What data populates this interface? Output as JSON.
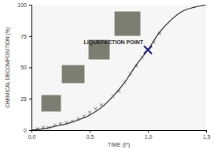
{
  "chart_data": {
    "type": "scatter",
    "x_label": "TIME (t*)",
    "y_label": "CHEMICAL DECOMPOSITION (%)",
    "xlim": [
      0,
      1.5
    ],
    "ylim": [
      0,
      100
    ],
    "xticks": [
      {
        "value": 0,
        "label": "0,0"
      },
      {
        "value": 0.5,
        "label": "0,5"
      },
      {
        "value": 1.0,
        "label": "1,0"
      },
      {
        "value": 1.5,
        "label": "1,5"
      }
    ],
    "yticks": [
      0,
      25,
      50,
      75,
      100
    ],
    "series": [
      {
        "type": "line",
        "color": "#222222",
        "line_style": "solid",
        "x": [
          0,
          0.1,
          0.2,
          0.3,
          0.4,
          0.5,
          0.6,
          0.7,
          0.8,
          0.9,
          1.0,
          1.1,
          1.2,
          1.3,
          1.4,
          1.5
        ],
        "values": [
          0,
          1,
          3,
          5,
          8,
          12,
          18,
          27,
          38,
          52,
          64,
          78,
          88,
          95,
          98,
          100
        ]
      },
      {
        "type": "scatter",
        "color": "#555555",
        "marker": "x",
        "x": [
          0.05,
          0.1,
          0.15,
          0.2,
          0.25,
          0.3,
          0.35,
          0.4,
          0.45,
          0.5,
          0.55,
          0.6,
          0.7,
          0.75,
          0.8,
          0.85,
          0.9,
          0.95,
          1.0,
          1.05,
          1.1
        ],
        "values": [
          1,
          2,
          2,
          4,
          5,
          6,
          7,
          9,
          11,
          14,
          17,
          20,
          27,
          31,
          38,
          45,
          51,
          58,
          64,
          70,
          77
        ]
      }
    ],
    "annotations": [
      {
        "text": "LIQUEFACTION POINT",
        "x": 1.0,
        "y": 64,
        "color": "#1a1a6e",
        "marker": "x"
      }
    ]
  }
}
